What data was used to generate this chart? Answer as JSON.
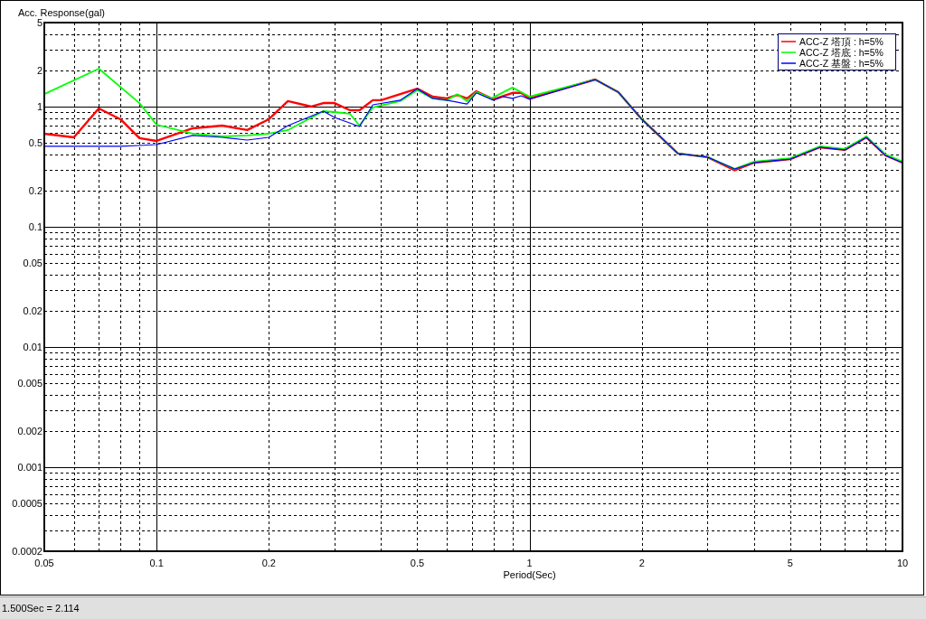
{
  "chart_data": {
    "type": "line",
    "ylabel": "Acc. Response(gal)",
    "xlabel": "Period(Sec)",
    "annotations": [
      "1.500Sec = 2.114"
    ],
    "log": "xy",
    "grid": true,
    "legend": "top right",
    "xlim": [
      0.05,
      10
    ],
    "xticks": [
      0.05,
      0.1,
      0.2,
      0.5,
      1,
      2,
      5,
      10
    ],
    "ylim": [
      0.0002,
      5
    ],
    "yticks": [
      0.0002,
      0.0005,
      0.001,
      0.002,
      0.005,
      0.01,
      0.02,
      0.05,
      0.1,
      0.2,
      0.5,
      1,
      2,
      5
    ],
    "series": [
      {
        "name": "ACC-Z 塔頂 : h=5%",
        "color": "#ff0000",
        "x": [
          0.05,
          0.06,
          0.07,
          0.08,
          0.09,
          0.1,
          0.125,
          0.15,
          0.175,
          0.2,
          0.225,
          0.26,
          0.28,
          0.3,
          0.33,
          0.35,
          0.38,
          0.4,
          0.5,
          0.55,
          0.6,
          0.64,
          0.68,
          0.72,
          0.8,
          0.9,
          0.95,
          1.0,
          1.5,
          1.73,
          2,
          2.5,
          3,
          3.55,
          4,
          5,
          6,
          7,
          8,
          9,
          10
        ],
        "values": [
          0.595,
          0.555,
          0.966,
          0.785,
          0.546,
          0.518,
          0.66,
          0.695,
          0.638,
          0.785,
          1.11,
          1.0,
          1.07,
          1.07,
          0.933,
          0.933,
          1.13,
          1.13,
          1.41,
          1.21,
          1.17,
          1.25,
          1.17,
          1.34,
          1.15,
          1.3,
          1.3,
          1.17,
          1.68,
          1.32,
          0.785,
          0.407,
          0.38,
          0.295,
          0.342,
          0.366,
          0.459,
          0.436,
          0.555,
          0.393,
          0.342
        ]
      },
      {
        "name": "ACC-Z 塔底 : h=5%",
        "color": "#00ff00",
        "x": [
          0.05,
          0.07,
          0.09,
          0.1,
          0.125,
          0.15,
          0.175,
          0.2,
          0.225,
          0.28,
          0.3,
          0.33,
          0.35,
          0.38,
          0.45,
          0.5,
          0.55,
          0.6,
          0.64,
          0.68,
          0.72,
          0.79,
          0.9,
          0.95,
          1.0,
          1.5,
          1.73,
          2,
          2.5,
          3,
          3.55,
          4,
          5,
          6,
          7,
          8,
          9,
          10
        ],
        "values": [
          1.27,
          2.07,
          1.07,
          0.707,
          0.595,
          0.565,
          0.575,
          0.595,
          0.638,
          0.917,
          0.901,
          0.871,
          0.695,
          0.983,
          1.11,
          1.37,
          1.17,
          1.13,
          1.27,
          1.11,
          1.32,
          1.17,
          1.44,
          1.32,
          1.21,
          1.68,
          1.32,
          0.785,
          0.407,
          0.38,
          0.303,
          0.348,
          0.372,
          0.467,
          0.444,
          0.565,
          0.4,
          0.348
        ]
      },
      {
        "name": "ACC-Z 基盤 : h=5%",
        "color": "#0000ff",
        "x": [
          0.05,
          0.08,
          0.09,
          0.1,
          0.125,
          0.15,
          0.175,
          0.2,
          0.225,
          0.28,
          0.3,
          0.35,
          0.38,
          0.45,
          0.5,
          0.55,
          0.6,
          0.68,
          0.72,
          0.8,
          0.85,
          0.9,
          0.95,
          1.0,
          1.5,
          1.73,
          2,
          2.5,
          3,
          3.55,
          4,
          5,
          6,
          7,
          8,
          9,
          10
        ],
        "values": [
          0.467,
          0.467,
          0.475,
          0.483,
          0.575,
          0.555,
          0.527,
          0.555,
          0.695,
          0.917,
          0.812,
          0.683,
          1.035,
          1.13,
          1.41,
          1.17,
          1.13,
          1.05,
          1.3,
          1.13,
          1.21,
          1.17,
          1.23,
          1.15,
          1.68,
          1.32,
          0.785,
          0.407,
          0.38,
          0.303,
          0.342,
          0.366,
          0.459,
          0.436,
          0.555,
          0.393,
          0.342
        ]
      }
    ]
  }
}
